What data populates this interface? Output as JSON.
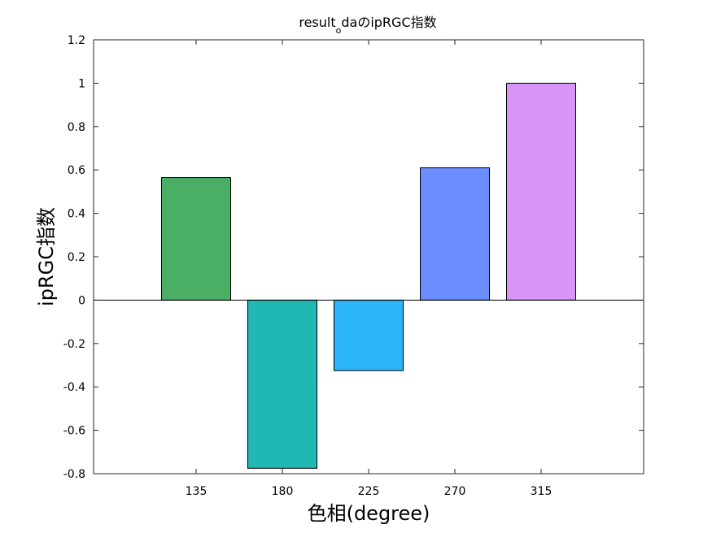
{
  "chart_data": {
    "type": "bar",
    "title_main": "result",
    "title_subscript": "o",
    "title_rest": "daのipRGC指数",
    "xlabel": "色相(degree)",
    "ylabel": "ipRGC指数",
    "categories": [
      "135",
      "180",
      "225",
      "270",
      "315"
    ],
    "values": [
      0.565,
      -0.775,
      -0.325,
      0.61,
      1.0
    ],
    "colors": [
      "#4aaf64",
      "#21b8b4",
      "#2db5fb",
      "#6b8dff",
      "#d796f5"
    ],
    "ylim": [
      -0.8,
      1.2
    ],
    "yticks": [
      1.2,
      1,
      0.8,
      0.6,
      0.4,
      0.2,
      0,
      -0.2,
      -0.4,
      -0.6,
      -0.8
    ],
    "ytick_labels": [
      "1.2",
      "1",
      "0.8",
      "0.6",
      "0.4",
      "0.2",
      "0",
      "-0.2",
      "-0.4",
      "-0.6",
      "-0.8"
    ],
    "grid": false,
    "legend": "none"
  }
}
